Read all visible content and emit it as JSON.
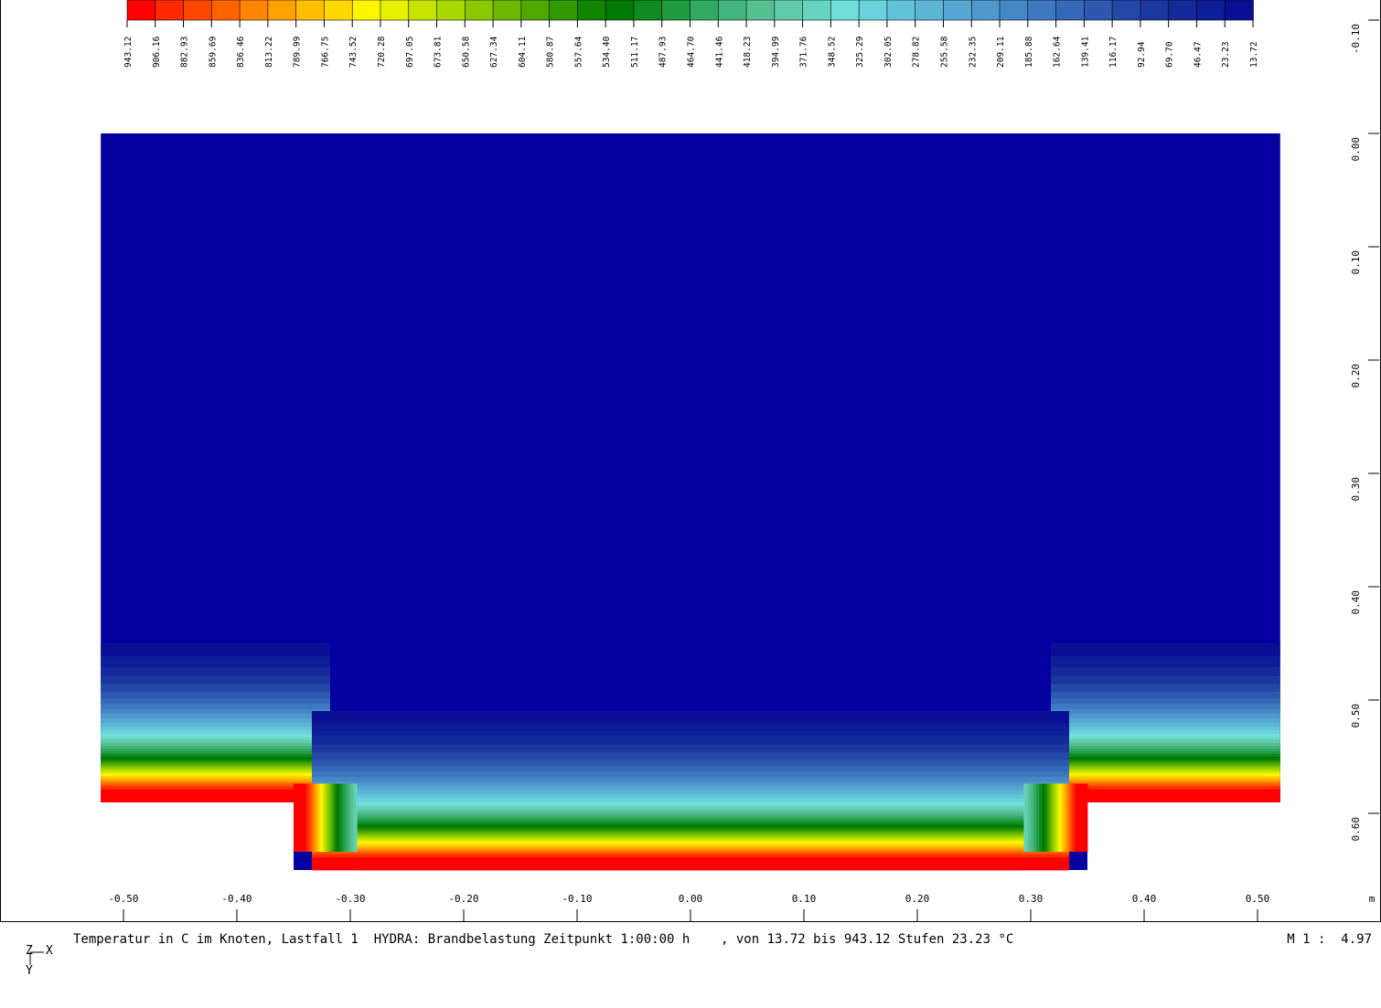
{
  "chart_data": {
    "type": "heatmap",
    "title": "Temperatur in C im Knoten, Lastfall 1  HYDRA: Brandbelastung Zeitpunkt 1:00:00 h    , von 13.72 bis 943.12 Stufen 23.23 °C",
    "scale_label": "M 1 :  4.97",
    "x_unit": "m",
    "xlim": [
      -0.52,
      0.52
    ],
    "ylim": [
      -0.1,
      0.65
    ],
    "x_ticks": [
      "-0.50",
      "-0.40",
      "-0.30",
      "-0.20",
      "-0.10",
      "0.00",
      "0.10",
      "0.20",
      "0.30",
      "0.40",
      "0.50"
    ],
    "y_ticks": [
      "-0.10",
      "0.00",
      "0.10",
      "0.20",
      "0.30",
      "0.40",
      "0.50",
      "0.60"
    ],
    "legend_levels": [
      "943.12",
      "906.16",
      "882.93",
      "859.69",
      "836.46",
      "813.22",
      "789.99",
      "766.75",
      "743.52",
      "720.28",
      "697.05",
      "673.81",
      "650.58",
      "627.34",
      "604.11",
      "580.87",
      "557.64",
      "534.40",
      "511.17",
      "487.93",
      "464.70",
      "441.46",
      "418.23",
      "394.99",
      "371.76",
      "348.52",
      "325.29",
      "302.05",
      "278.82",
      "255.58",
      "232.35",
      "209.11",
      "185.88",
      "162.64",
      "139.41",
      "116.17",
      "92.94",
      "69.70",
      "46.47",
      "23.23",
      "13.72"
    ],
    "legend_colors": [
      "#ff0000",
      "#ff2a00",
      "#ff4700",
      "#ff6400",
      "#ff8400",
      "#ffa100",
      "#ffbe00",
      "#ffd800",
      "#fff500",
      "#e6f000",
      "#c6e400",
      "#a8d800",
      "#8ac900",
      "#6cb800",
      "#4ea800",
      "#309800",
      "#108600",
      "#007a00",
      "#0f8a20",
      "#1f9a40",
      "#30aa60",
      "#45b580",
      "#55c090",
      "#60ccaa",
      "#65d5c0",
      "#70dfda",
      "#6ad2da",
      "#62c4d8",
      "#5cb5d5",
      "#56a8d2",
      "#4e98cc",
      "#4688c5",
      "#3e78c0",
      "#3468b8",
      "#2c58b0",
      "#2448a8",
      "#1c38a0",
      "#142a9b",
      "#0e1d98",
      "#0a1095",
      "#0500a0"
    ],
    "temperature_range": {
      "min": 13.72,
      "max": 943.12,
      "step": 23.23
    },
    "cross_section": {
      "slab": {
        "x": [
          -0.52,
          0.52
        ],
        "y": [
          0.0,
          0.59
        ]
      },
      "beam": {
        "x": [
          -0.35,
          0.35
        ],
        "y": [
          0.59,
          0.65
        ]
      }
    },
    "field": {
      "ambient_color": "#0500a0",
      "heated_edge_color": "#ff0000"
    }
  },
  "axis_glyph": {
    "z": "Z",
    "x": "X",
    "y": "Y"
  }
}
